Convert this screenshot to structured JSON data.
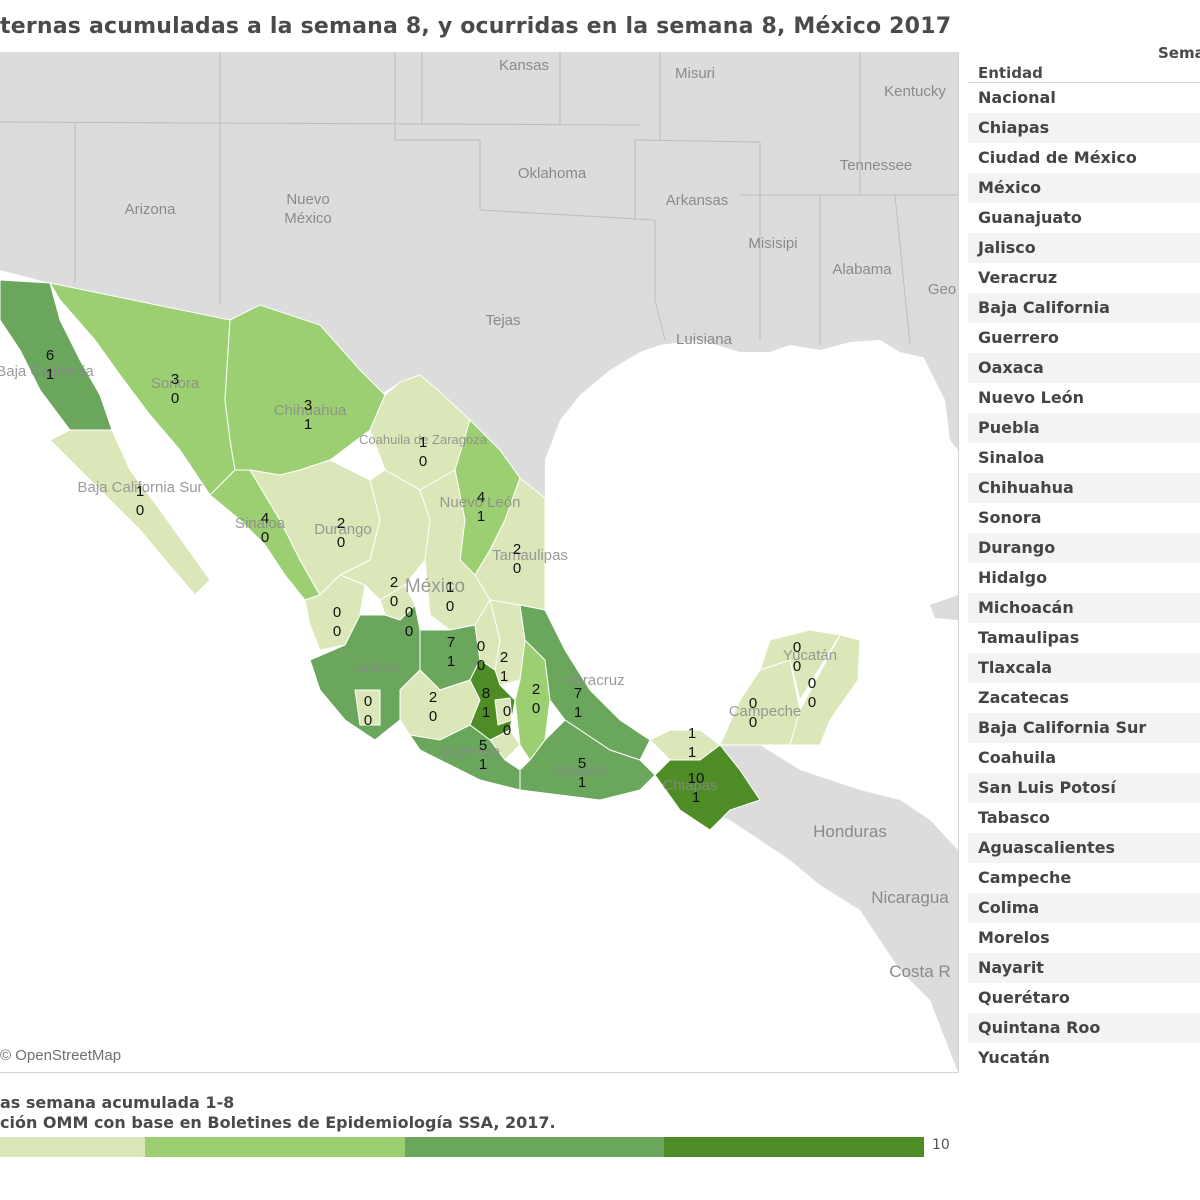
{
  "title": "ternas acumuladas a la semana 8, y ocurridas en la semana 8, México 2017",
  "attribution": "© OpenStreetMap",
  "table": {
    "header_top": "Sema",
    "header": "Entidad",
    "rows": [
      "Nacional",
      "Chiapas",
      "Ciudad de México",
      "México",
      "Guanajuato",
      "Jalisco",
      "Veracruz",
      "Baja California",
      "Guerrero",
      "Oaxaca",
      "Nuevo León",
      "Puebla",
      "Sinaloa",
      "Chihuahua",
      "Sonora",
      "Durango",
      "Hidalgo",
      "Michoacán",
      "Tamaulipas",
      "Tlaxcala",
      "Zacatecas",
      "Baja California Sur",
      "Coahuila",
      "San Luis Potosí",
      "Tabasco",
      "Aguascalientes",
      "Campeche",
      "Colima",
      "Morelos",
      "Nayarit",
      "Querétaro",
      "Quintana Roo",
      "Yucatán"
    ]
  },
  "footer": {
    "line1": "as semana acumulada 1-8",
    "line2": "ción OMM con base en Boletines de Epidemiología SSA, 2017.",
    "scale_max": "10"
  },
  "colors": {
    "c1": "#dbe7b8",
    "c2": "#9ccf72",
    "c3": "#6aa65c",
    "c4": "#4e8c26",
    "land": "#dcdcdc",
    "sea": "#ffffff"
  },
  "map_labels": [
    "Kansas",
    "Misuri",
    "Kentucky",
    "Oklahoma",
    "Tennessee",
    "Arkansas",
    "Arizona",
    "Nuevo",
    "México",
    "Misisipi",
    "Alabama",
    "Geo",
    "Tejas",
    "Luisiana",
    "Honduras",
    "Nicaragua",
    "Costa R"
  ],
  "state_labels": [
    "Baja California",
    "Sonora",
    "Chihuahua",
    "Coahuila de Zaragoza",
    "Baja California Sur",
    "Nuevo León",
    "Durango",
    "Sinaloa",
    "Tamaulipas",
    "México",
    "Jalisco",
    "Veracruz",
    "Yucatán",
    "Campeche",
    "Guerrero",
    "Oaxaca",
    "Chiapas"
  ],
  "state_values": [
    {
      "state": "Baja California",
      "acc": "6",
      "week": "1"
    },
    {
      "state": "Sonora",
      "acc": "3",
      "week": "0"
    },
    {
      "state": "Chihuahua",
      "acc": "3",
      "week": "1"
    },
    {
      "state": "Coahuila",
      "acc": "1",
      "week": "0"
    },
    {
      "state": "Baja California Sur",
      "acc": "1",
      "week": "0"
    },
    {
      "state": "Nuevo León",
      "acc": "4",
      "week": "1"
    },
    {
      "state": "Sinaloa",
      "acc": "4",
      "week": "0"
    },
    {
      "state": "Durango",
      "acc": "2",
      "week": "0"
    },
    {
      "state": "Tamaulipas",
      "acc": "2",
      "week": "0"
    },
    {
      "state": "Zacatecas",
      "acc": "2",
      "week": "0"
    },
    {
      "state": "San Luis Potosí",
      "acc": "1",
      "week": "0"
    },
    {
      "state": "Nayarit",
      "acc": "0",
      "week": "0"
    },
    {
      "state": "Aguascalientes",
      "acc": "0",
      "week": "0"
    },
    {
      "state": "Guanajuato",
      "acc": "7",
      "week": "1"
    },
    {
      "state": "Querétaro",
      "acc": "0",
      "week": "0"
    },
    {
      "state": "Hidalgo",
      "acc": "2",
      "week": "1"
    },
    {
      "state": "Jalisco",
      "acc": "0",
      "week": "0"
    },
    {
      "state": "Colima",
      "acc": "2",
      "week": "0"
    },
    {
      "state": "Michoacán",
      "acc": "8",
      "week": "1"
    },
    {
      "state": "Ciudad de México",
      "acc": "0",
      "week": "0"
    },
    {
      "state": "Tlaxcala",
      "acc": "2",
      "week": "0"
    },
    {
      "state": "Veracruz",
      "acc": "7",
      "week": "1"
    },
    {
      "state": "Guerrero",
      "acc": "5",
      "week": "1"
    },
    {
      "state": "Oaxaca",
      "acc": "5",
      "week": "1"
    },
    {
      "state": "Tabasco",
      "acc": "1",
      "week": "1"
    },
    {
      "state": "Chiapas",
      "acc": "10",
      "week": "1"
    },
    {
      "state": "Campeche",
      "acc": "0",
      "week": "0"
    },
    {
      "state": "Yucatán",
      "acc": "0",
      "week": "0"
    },
    {
      "state": "Quintana Roo",
      "acc": "0",
      "week": "0"
    }
  ]
}
